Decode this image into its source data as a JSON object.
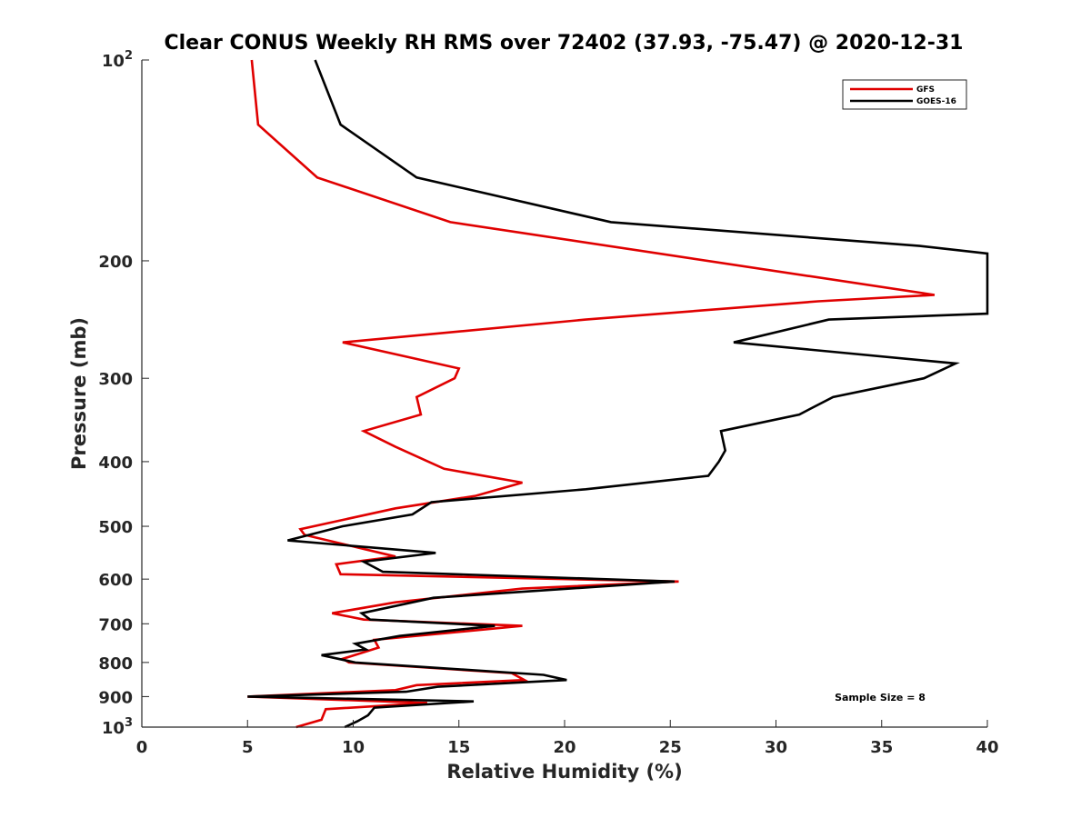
{
  "chart_data": {
    "type": "line",
    "title": "Clear CONUS Weekly RH RMS over 72402 (37.93, -75.47) @ 2020-12-31",
    "xlabel": "Relative Humidity (%)",
    "ylabel": "Pressure (mb)",
    "xlim": [
      0,
      40
    ],
    "ylim": [
      100,
      1000
    ],
    "yscale": "log",
    "yreversed": true,
    "grid": false,
    "legend_position": "top-right",
    "x_ticks": [
      0,
      5,
      10,
      15,
      20,
      25,
      30,
      35,
      40
    ],
    "x_tick_labels": [
      "0",
      "5",
      "10",
      "15",
      "20",
      "25",
      "30",
      "35",
      "40"
    ],
    "y_ticks": [
      100,
      200,
      300,
      400,
      500,
      600,
      700,
      800,
      900,
      1000
    ],
    "y_tick_labels": [
      {
        "base": "10",
        "exp": "2"
      },
      {
        "base": "200",
        "exp": ""
      },
      {
        "base": "300",
        "exp": ""
      },
      {
        "base": "400",
        "exp": ""
      },
      {
        "base": "500",
        "exp": ""
      },
      {
        "base": "600",
        "exp": ""
      },
      {
        "base": "700",
        "exp": ""
      },
      {
        "base": "800",
        "exp": ""
      },
      {
        "base": "900",
        "exp": ""
      },
      {
        "base": "10",
        "exp": "3"
      }
    ],
    "annotation": "Sample Size = 8",
    "series": [
      {
        "name": "GFS",
        "color": "#e00000",
        "points": [
          [
            5.2,
            100
          ],
          [
            5.5,
            125
          ],
          [
            8.3,
            150
          ],
          [
            14.6,
            175
          ],
          [
            37.5,
            225
          ],
          [
            32.0,
            230
          ],
          [
            21.0,
            245
          ],
          [
            9.5,
            265
          ],
          [
            15.0,
            290
          ],
          [
            14.8,
            300
          ],
          [
            13.0,
            320
          ],
          [
            13.2,
            340
          ],
          [
            10.5,
            360
          ],
          [
            12.0,
            380
          ],
          [
            14.3,
            410
          ],
          [
            18.0,
            430
          ],
          [
            15.8,
            450
          ],
          [
            12.0,
            470
          ],
          [
            7.5,
            505
          ],
          [
            7.7,
            515
          ],
          [
            12.0,
            555
          ],
          [
            9.2,
            570
          ],
          [
            9.4,
            590
          ],
          [
            25.4,
            605
          ],
          [
            18.0,
            620
          ],
          [
            12.0,
            650
          ],
          [
            9.0,
            675
          ],
          [
            10.5,
            690
          ],
          [
            18.0,
            705
          ],
          [
            11.0,
            740
          ],
          [
            11.2,
            760
          ],
          [
            9.5,
            790
          ],
          [
            9.8,
            800
          ],
          [
            17.5,
            830
          ],
          [
            18.1,
            850
          ],
          [
            13.0,
            865
          ],
          [
            12.0,
            880
          ],
          [
            5.0,
            900
          ],
          [
            13.5,
            920
          ],
          [
            8.7,
            940
          ],
          [
            8.5,
            975
          ],
          [
            7.3,
            1000
          ]
        ]
      },
      {
        "name": "GOES-16",
        "color": "#000000",
        "points": [
          [
            8.2,
            100
          ],
          [
            9.4,
            125
          ],
          [
            13.0,
            150
          ],
          [
            22.2,
            175
          ],
          [
            36.8,
            190
          ],
          [
            40.0,
            195
          ],
          [
            40.0,
            240
          ],
          [
            32.5,
            245
          ],
          [
            28.0,
            265
          ],
          [
            38.5,
            285
          ],
          [
            37.0,
            300
          ],
          [
            32.7,
            320
          ],
          [
            31.1,
            340
          ],
          [
            27.4,
            360
          ],
          [
            27.6,
            385
          ],
          [
            27.3,
            400
          ],
          [
            26.8,
            420
          ],
          [
            21.0,
            440
          ],
          [
            13.7,
            460
          ],
          [
            12.8,
            480
          ],
          [
            9.5,
            500
          ],
          [
            6.9,
            525
          ],
          [
            13.9,
            548
          ],
          [
            10.5,
            565
          ],
          [
            11.4,
            585
          ],
          [
            25.2,
            605
          ],
          [
            13.8,
            640
          ],
          [
            10.4,
            675
          ],
          [
            10.8,
            690
          ],
          [
            16.7,
            705
          ],
          [
            12.2,
            730
          ],
          [
            10.1,
            750
          ],
          [
            10.6,
            765
          ],
          [
            8.5,
            780
          ],
          [
            10.1,
            800
          ],
          [
            19.0,
            835
          ],
          [
            20.1,
            850
          ],
          [
            14.0,
            870
          ],
          [
            12.5,
            885
          ],
          [
            5.0,
            900
          ],
          [
            15.7,
            915
          ],
          [
            11.0,
            935
          ],
          [
            10.7,
            960
          ],
          [
            10.2,
            980
          ],
          [
            9.6,
            1000
          ]
        ]
      }
    ]
  }
}
